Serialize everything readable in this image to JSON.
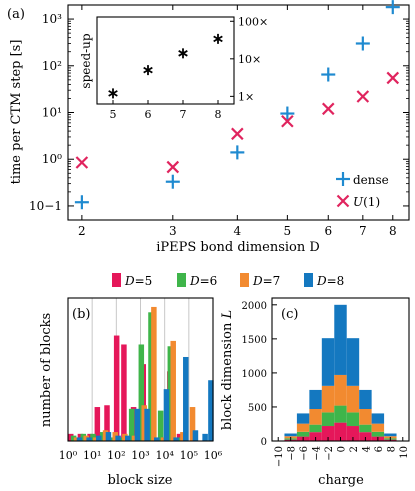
{
  "colors": {
    "dense": "#1f8ad0",
    "u1": "#e0245e",
    "d5": "#e5175a",
    "d6": "#3fb54a",
    "d7": "#f28a30",
    "d8": "#1478c0"
  },
  "chart_data": [
    {
      "id": "a",
      "type": "scatter",
      "panel_label": "(a)",
      "xlabel": "iPEPS bond dimension D",
      "ylabel": "time per CTM step [s]",
      "x_ticks": [
        2,
        3,
        4,
        5,
        6,
        7,
        8
      ],
      "x_scale": "log",
      "y_scale": "log",
      "ylim": [
        0.05,
        2000
      ],
      "y_ticks": [
        "10−1",
        "10⁰",
        "10¹",
        "10²",
        "10³"
      ],
      "legend_position": "bottom-right",
      "series": [
        {
          "name": "dense",
          "marker": "plus",
          "x": [
            2,
            3,
            4,
            5,
            6,
            7,
            8
          ],
          "y": [
            0.12,
            0.33,
            1.4,
            9.5,
            65,
            300,
            1800
          ]
        },
        {
          "name": "U(1)",
          "marker": "cross",
          "x": [
            2,
            3,
            4,
            5,
            6,
            7,
            8
          ],
          "y": [
            0.85,
            0.68,
            3.5,
            6.5,
            12,
            22,
            55
          ]
        }
      ],
      "inset": {
        "type": "scatter",
        "ylabel": "speed-up",
        "x_ticks": [
          5,
          6,
          7,
          8
        ],
        "y_scale": "log",
        "y_ticks": [
          "1×",
          "10×",
          "100×"
        ],
        "marker": "asterisk",
        "x": [
          5,
          6,
          7,
          8
        ],
        "y": [
          1.2,
          5,
          14,
          34
        ]
      }
    },
    {
      "id": "b",
      "type": "bar",
      "panel_label": "(b)",
      "xlabel": "block size",
      "ylabel": "number of blocks",
      "x_scale": "log",
      "x_ticks": [
        "10⁰",
        "10¹",
        "10²",
        "10³",
        "10⁴",
        "10⁵",
        "10⁶"
      ],
      "ylim": [
        0,
        80
      ],
      "grid": "vertical",
      "series": [
        {
          "name": "D=5",
          "x_log10": [
            0,
            0.4,
            0.8,
            1.1,
            1.5,
            1.9,
            2.2,
            2.6,
            3.0,
            3.3,
            3.7,
            4.1,
            4.5
          ],
          "values": [
            4,
            4,
            4,
            19,
            20,
            59,
            54,
            19,
            43,
            2,
            2,
            39,
            4
          ]
        },
        {
          "name": "D=6",
          "x_log10": [
            0.12,
            0.52,
            0.92,
            1.32,
            1.72,
            2.12,
            2.52,
            2.92,
            3.32,
            3.72,
            4.12,
            4.52
          ],
          "values": [
            3,
            4,
            4,
            5,
            2,
            2,
            18,
            54,
            72,
            17,
            53,
            2
          ]
        },
        {
          "name": "D=7",
          "x_log10": [
            0.24,
            0.64,
            1.04,
            1.44,
            1.84,
            2.24,
            2.64,
            3.04,
            3.44,
            3.84,
            4.24,
            4.64,
            5.04
          ],
          "values": [
            2,
            3,
            2,
            6,
            5,
            4,
            3,
            20,
            75,
            2,
            56,
            5,
            19
          ]
        },
        {
          "name": "D=8",
          "x_log10": [
            0.36,
            0.76,
            1.16,
            1.56,
            1.96,
            2.36,
            2.76,
            3.16,
            3.56,
            3.96,
            4.36,
            4.76,
            5.16,
            5.56,
            5.8
          ],
          "values": [
            2,
            2,
            3,
            5,
            3,
            3,
            18,
            18,
            2,
            29,
            2,
            47,
            6,
            4,
            34
          ]
        }
      ]
    },
    {
      "id": "c",
      "type": "bar",
      "stacked": true,
      "panel_label": "(c)",
      "xlabel": "charge",
      "ylabel": "block dimension L",
      "x_ticks": [
        -10,
        -8,
        -6,
        -4,
        -2,
        0,
        2,
        4,
        6,
        8,
        10
      ],
      "ylim": [
        0,
        2100
      ],
      "y_ticks": [
        0,
        500,
        1000,
        1500,
        2000
      ],
      "categories": [
        -8,
        -6,
        -4,
        -2,
        0,
        2,
        4,
        6,
        8
      ],
      "series": [
        {
          "name": "D=5",
          "values": [
            20,
            65,
            130,
            220,
            270,
            220,
            130,
            65,
            20
          ]
        },
        {
          "name": "D=6",
          "values": [
            20,
            70,
            110,
            200,
            250,
            200,
            110,
            70,
            20
          ]
        },
        {
          "name": "D=7",
          "values": [
            30,
            120,
            230,
            390,
            450,
            390,
            230,
            120,
            30
          ]
        },
        {
          "name": "D=8",
          "values": [
            40,
            150,
            280,
            700,
            1030,
            700,
            280,
            150,
            40
          ]
        }
      ]
    }
  ],
  "legend_bottom": {
    "entries": [
      {
        "prefix": "D",
        "suffix": "=5",
        "color_key": "d5"
      },
      {
        "prefix": "D",
        "suffix": "=6",
        "color_key": "d6"
      },
      {
        "prefix": "D",
        "suffix": "=7",
        "color_key": "d7"
      },
      {
        "prefix": "D",
        "suffix": "=8",
        "color_key": "d8"
      }
    ]
  }
}
